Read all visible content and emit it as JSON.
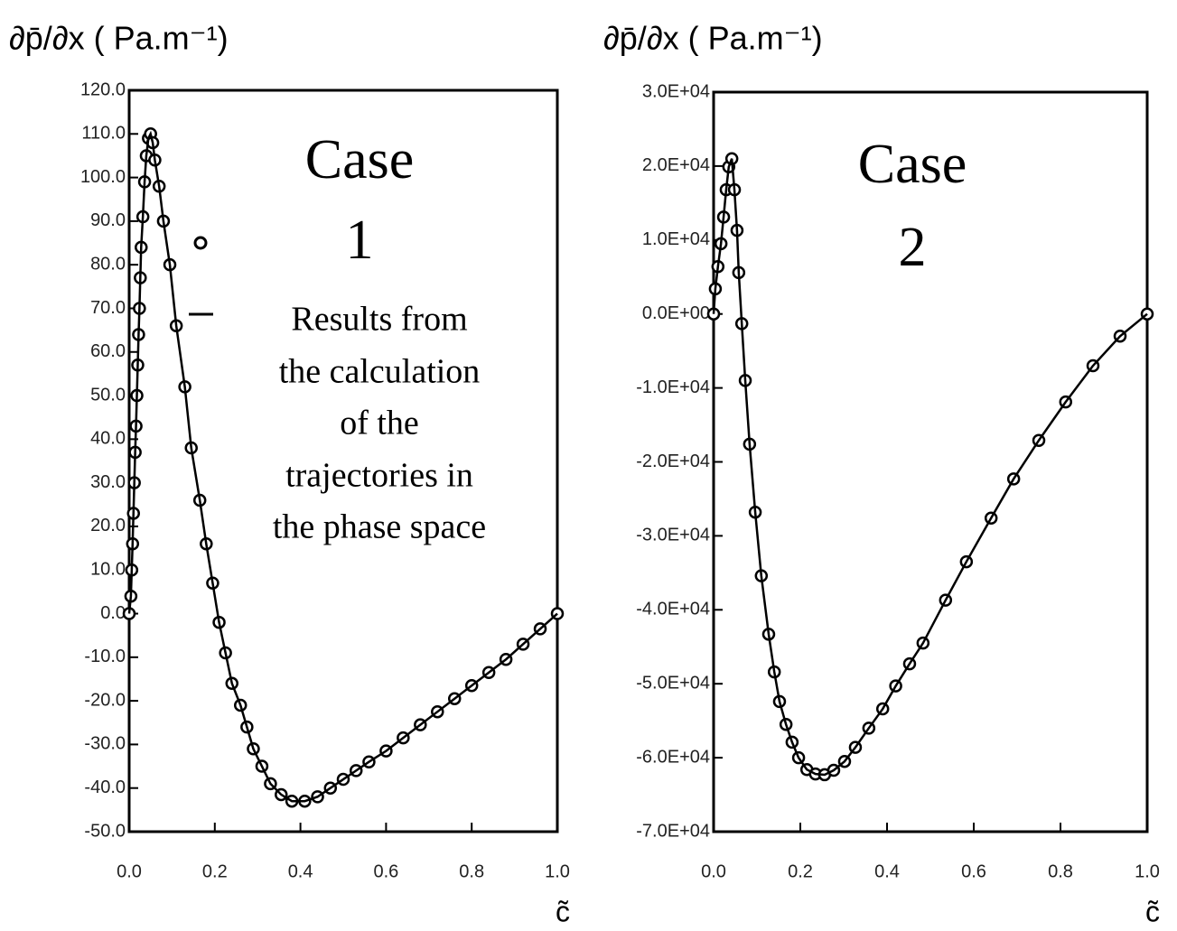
{
  "chart_data": [
    {
      "type": "line",
      "y_label": "∂p̄/∂x ( Pa.m⁻¹)",
      "x_label": "c̃",
      "x": [
        0,
        0.004,
        0.006,
        0.008,
        0.01,
        0.012,
        0.014,
        0.016,
        0.018,
        0.02,
        0.022,
        0.024,
        0.026,
        0.028,
        0.032,
        0.036,
        0.04,
        0.045,
        0.05,
        0.055,
        0.06,
        0.07,
        0.08,
        0.095,
        0.11,
        0.13,
        0.145,
        0.165,
        0.18,
        0.195,
        0.21,
        0.225,
        0.24,
        0.26,
        0.275,
        0.29,
        0.31,
        0.33,
        0.355,
        0.38,
        0.41,
        0.44,
        0.47,
        0.5,
        0.53,
        0.56,
        0.6,
        0.64,
        0.68,
        0.72,
        0.76,
        0.8,
        0.84,
        0.88,
        0.92,
        0.96,
        1.0
      ],
      "series": [
        {
          "marker": "circle",
          "color": "#000000",
          "values": [
            0,
            4,
            10,
            16,
            23,
            30,
            37,
            43,
            50,
            57,
            64,
            70,
            77,
            84,
            91,
            99,
            105,
            109,
            110,
            108,
            104,
            98,
            90,
            80,
            66,
            52,
            38,
            26,
            16,
            7,
            -2,
            -9,
            -16,
            -21,
            -26,
            -31,
            -35,
            -39,
            -41.5,
            -43,
            -43,
            -42,
            -40,
            -38,
            -36,
            -34,
            -31.5,
            -28.5,
            -25.5,
            -22.5,
            -19.5,
            -16.5,
            -13.5,
            -10.5,
            -7,
            -3.5,
            0
          ]
        },
        {
          "marker": "none",
          "color": "#000000",
          "values": [
            0,
            4,
            10,
            16,
            23,
            30,
            37,
            43,
            50,
            57,
            64,
            70,
            77,
            84,
            91,
            99,
            105,
            109,
            110,
            108,
            104,
            98,
            90,
            80,
            66,
            52,
            38,
            26,
            16,
            7,
            -2,
            -9,
            -16,
            -21,
            -26,
            -31,
            -35,
            -39,
            -41.5,
            -43,
            -43,
            -42,
            -40,
            -38,
            -36,
            -34,
            -31.5,
            -28.5,
            -25.5,
            -22.5,
            -19.5,
            -16.5,
            -13.5,
            -10.5,
            -7,
            -3.5,
            0
          ]
        }
      ],
      "xlim": [
        0,
        1
      ],
      "xticks": [
        {
          "value": 0,
          "label": "0.0"
        },
        0.2,
        0.4,
        0.6,
        0.8,
        {
          "value": 1,
          "label": "1.0"
        }
      ],
      "ylim": [
        -50,
        120
      ],
      "yticks": [
        {
          "value": -50,
          "label": "-50.0"
        },
        {
          "value": -40,
          "label": "-40.0"
        },
        {
          "value": -30,
          "label": "-30.0"
        },
        {
          "value": -20,
          "label": "-20.0"
        },
        {
          "value": -10,
          "label": "-10.0"
        },
        {
          "value": 0,
          "label": "0.0"
        },
        {
          "value": 10,
          "label": "10.0"
        },
        {
          "value": 20,
          "label": "20.0"
        },
        {
          "value": 30,
          "label": "30.0"
        },
        {
          "value": 40,
          "label": "40.0"
        },
        {
          "value": 50,
          "label": "50.0"
        },
        {
          "value": 60,
          "label": "60.0"
        },
        {
          "value": 70,
          "label": "70.0"
        },
        {
          "value": 80,
          "label": "80.0"
        },
        {
          "value": 90,
          "label": "90.0"
        },
        {
          "value": 100,
          "label": "100.0"
        },
        {
          "value": 110,
          "label": "110.0"
        },
        {
          "value": 120,
          "label": "120.0"
        }
      ],
      "case_label": [
        "Case",
        "1"
      ],
      "legend_text": [
        "Results from",
        "the calculation",
        "of the",
        "trajectories in",
        "the phase space"
      ]
    },
    {
      "type": "line",
      "y_label": "∂p̄/∂x ( Pa.m⁻¹)",
      "x_label": "c̃",
      "x": [
        0,
        0.004,
        0.01,
        0.017,
        0.023,
        0.029,
        0.035,
        0.042,
        0.048,
        0.054,
        0.058,
        0.065,
        0.073,
        0.083,
        0.096,
        0.11,
        0.127,
        0.14,
        0.152,
        0.167,
        0.181,
        0.196,
        0.215,
        0.235,
        0.256,
        0.277,
        0.302,
        0.327,
        0.358,
        0.39,
        0.42,
        0.452,
        0.483,
        0.535,
        0.583,
        0.64,
        0.692,
        0.75,
        0.812,
        0.875,
        0.9375,
        1.0
      ],
      "series": [
        {
          "marker": "circle",
          "color": "#000000",
          "values": [
            0,
            3400,
            6400,
            9500,
            13100,
            16800,
            19900,
            21000,
            16800,
            11300,
            5600,
            -1300,
            -9000,
            -17600,
            -26800,
            -35400,
            -43300,
            -48400,
            -52400,
            -55500,
            -57900,
            -60000,
            -61600,
            -62200,
            -62300,
            -61700,
            -60500,
            -58600,
            -56000,
            -53400,
            -50300,
            -47300,
            -44500,
            -38700,
            -33500,
            -27600,
            -22300,
            -17100,
            -11900,
            -7000,
            -3000,
            0
          ]
        },
        {
          "marker": "none",
          "color": "#000000",
          "values": [
            0,
            3400,
            6400,
            9500,
            13100,
            16800,
            19900,
            21000,
            16800,
            11300,
            5600,
            -1300,
            -9000,
            -17600,
            -26800,
            -35400,
            -43300,
            -48400,
            -52400,
            -55500,
            -57900,
            -60000,
            -61600,
            -62200,
            -62300,
            -61700,
            -60500,
            -58600,
            -56000,
            -53400,
            -50300,
            -47300,
            -44500,
            -38700,
            -33500,
            -27600,
            -22300,
            -17100,
            -11900,
            -7000,
            -3000,
            0
          ]
        }
      ],
      "xlim": [
        0,
        1
      ],
      "xticks": [
        {
          "value": 0,
          "label": "0.0"
        },
        0.2,
        0.4,
        0.6,
        0.8,
        {
          "value": 1,
          "label": "1.0"
        }
      ],
      "ylim": [
        -70000,
        30000
      ],
      "yticks": [
        {
          "value": -70000,
          "label": "-7.0E+04"
        },
        {
          "value": -60000,
          "label": "-6.0E+04"
        },
        {
          "value": -50000,
          "label": "-5.0E+04"
        },
        {
          "value": -40000,
          "label": "-4.0E+04"
        },
        {
          "value": -30000,
          "label": "-3.0E+04"
        },
        {
          "value": -20000,
          "label": "-2.0E+04"
        },
        {
          "value": -10000,
          "label": "-1.0E+04"
        },
        {
          "value": 0,
          "label": "0.0E+00"
        },
        {
          "value": 10000,
          "label": "1.0E+04"
        },
        {
          "value": 20000,
          "label": "2.0E+04"
        },
        {
          "value": 30000,
          "label": "3.0E+04"
        }
      ],
      "case_label": [
        "Case",
        "2"
      ]
    }
  ]
}
